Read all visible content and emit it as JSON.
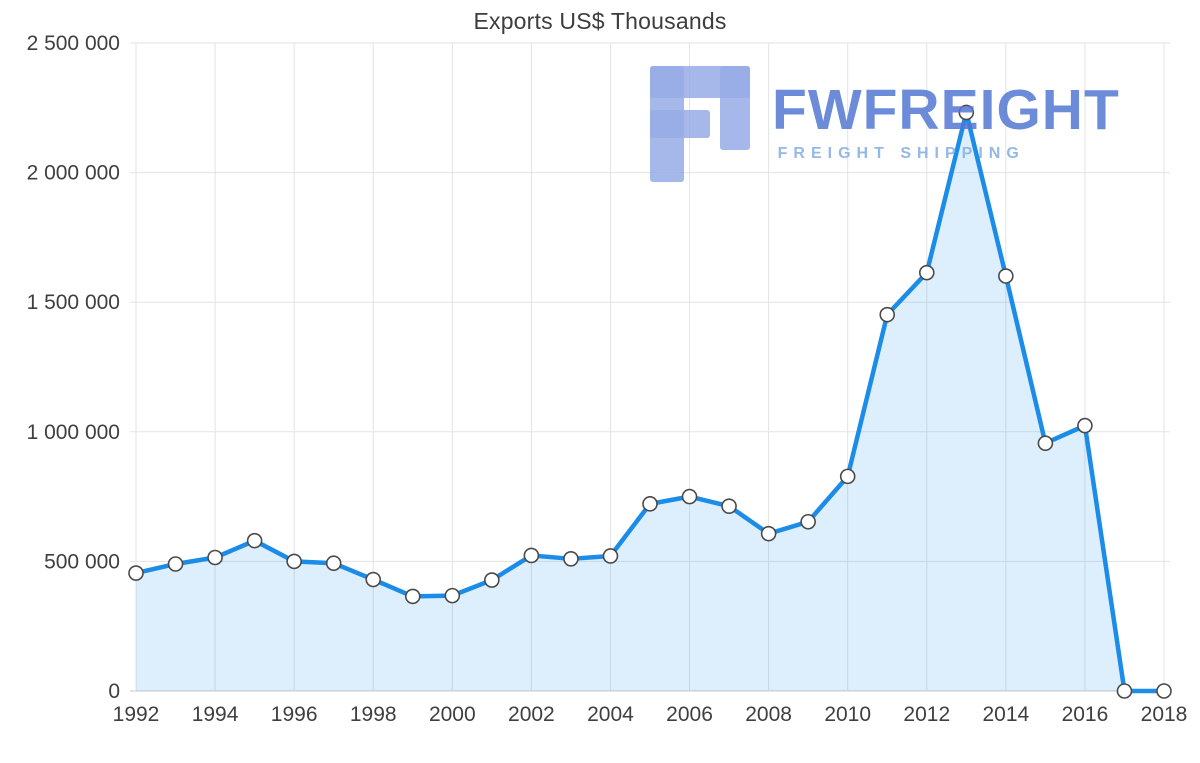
{
  "chart_data": {
    "type": "area",
    "title": "Exports US$ Thousands",
    "x": [
      1992,
      1993,
      1994,
      1995,
      1996,
      1997,
      1998,
      1999,
      2000,
      2001,
      2002,
      2003,
      2004,
      2005,
      2006,
      2007,
      2008,
      2009,
      2010,
      2011,
      2012,
      2013,
      2014,
      2015,
      2016,
      2017,
      2018
    ],
    "values": [
      455000,
      490000,
      515000,
      580000,
      500000,
      493000,
      430000,
      365000,
      368000,
      428000,
      523000,
      510000,
      521000,
      722000,
      750000,
      713000,
      607000,
      653000,
      828000,
      1452000,
      1614000,
      2232000,
      1601000,
      956000,
      1024000,
      0,
      0
    ],
    "xlabel": "",
    "ylabel": "",
    "ylim": [
      0,
      2500000
    ],
    "ytick_step": 500000,
    "ytick_labels": [
      "0",
      "500 000",
      "1 000 000",
      "1 500 000",
      "2 000 000",
      "2 500 000"
    ],
    "xtick_labels": [
      "1992",
      "1994",
      "1996",
      "1998",
      "2000",
      "2002",
      "2004",
      "2006",
      "2008",
      "2010",
      "2012",
      "2014",
      "2016",
      "2018"
    ],
    "xtick_every": 2,
    "grid": true,
    "legend": "none",
    "line_color": "#1b8ce8",
    "fill_color": "rgba(27, 140, 232, 0.15)",
    "marker_fill": "#ffffff",
    "marker_stroke": "#4a4a4a",
    "gridline_color": "#e3e3e3",
    "axis_line_color": "#c8c8c8",
    "tick_color": "#3f3f3f"
  },
  "watermark": {
    "brand": "FWFREIGHT",
    "tagline": "FREIGHT SHIPPING",
    "brand_color": "#5277d1",
    "logo_color": "#97ace6"
  }
}
